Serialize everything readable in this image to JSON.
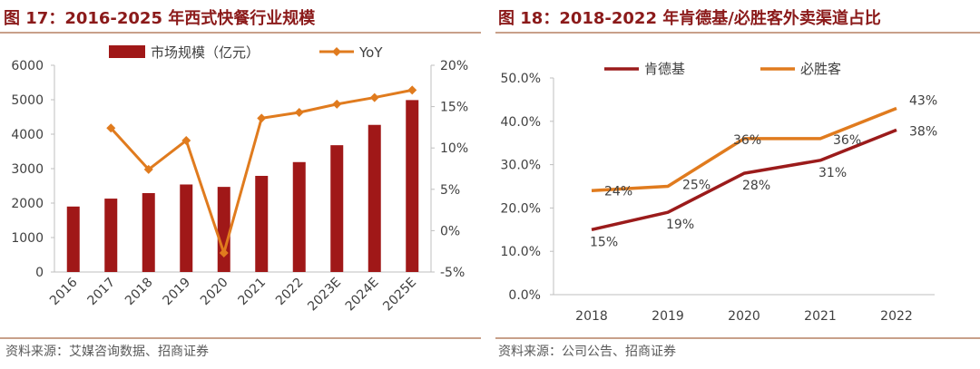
{
  "left": {
    "title": "图 17：2016-2025 年西式快餐行业规模",
    "source": "资料来源：艾媒咨询数据、招商证券"
  },
  "right": {
    "title": "图 18：2018-2022 年肯德基/必胜客外卖渠道占比",
    "source": "资料来源：公司公告、招商证券"
  },
  "colors": {
    "bar": "#a01818",
    "yoy": "#e07b1e",
    "kfc": "#9b1b1b",
    "pizza": "#e07b1e",
    "axis": "#bfbfbf"
  },
  "chart_data": [
    {
      "type": "bar",
      "title": "2016-2025 年西式快餐行业规模",
      "categories": [
        "2016",
        "2017",
        "2018",
        "2019",
        "2020",
        "2021",
        "2022",
        "2023E",
        "2024E",
        "2025E"
      ],
      "series": [
        {
          "name": "市场规模（亿元）",
          "type": "bar",
          "axis": "left",
          "values": [
            1900,
            2130,
            2290,
            2540,
            2470,
            2790,
            3190,
            3680,
            4270,
            4990
          ]
        },
        {
          "name": "YoY",
          "type": "line",
          "axis": "right",
          "unit": "%",
          "values": [
            null,
            12.4,
            7.4,
            10.9,
            -2.7,
            13.6,
            14.3,
            15.3,
            16.1,
            17.0
          ]
        }
      ],
      "ylim": [
        0,
        6000
      ],
      "yticks": [
        "0",
        "1000",
        "2000",
        "3000",
        "4000",
        "5000",
        "6000"
      ],
      "y2lim": [
        -5,
        20
      ],
      "y2ticks": [
        "-5%",
        "0%",
        "5%",
        "10%",
        "15%",
        "20%"
      ],
      "legend": "top"
    },
    {
      "type": "line",
      "title": "2018-2022 年肯德基/必胜客外卖渠道占比",
      "categories": [
        "2018",
        "2019",
        "2020",
        "2021",
        "2022"
      ],
      "series": [
        {
          "name": "肯德基",
          "values": [
            15,
            19,
            28,
            31,
            38
          ],
          "labels": [
            "15%",
            "19%",
            "28%",
            "31%",
            "38%"
          ]
        },
        {
          "name": "必胜客",
          "values": [
            24,
            25,
            36,
            36,
            43
          ],
          "labels": [
            "24%",
            "25%",
            "36%",
            "36%",
            "43%"
          ]
        }
      ],
      "ylim": [
        0,
        50
      ],
      "yticks": [
        "0.0%",
        "10.0%",
        "20.0%",
        "30.0%",
        "40.0%",
        "50.0%"
      ],
      "legend": "top"
    }
  ]
}
